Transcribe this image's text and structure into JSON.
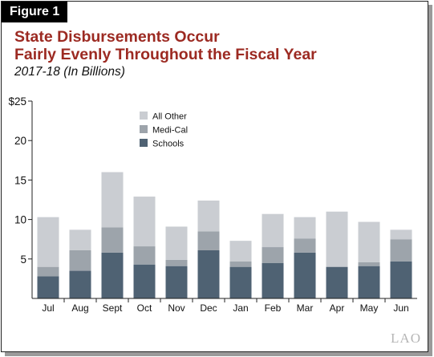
{
  "figure_label": "Figure 1",
  "title_line1": "State Disbursements Occur",
  "title_line2": "Fairly Evenly Throughout the Fiscal Year",
  "subtitle": "2017-18 (In Billions)",
  "logo_text": "LAO",
  "colors": {
    "title": "#9c2a22",
    "schools": "#4f6273",
    "medi_cal": "#9da4ab",
    "all_other": "#cacdd2",
    "axis": "#222222"
  },
  "chart_data": {
    "type": "bar",
    "stacked": true,
    "categories": [
      "Jul",
      "Aug",
      "Sept",
      "Oct",
      "Nov",
      "Dec",
      "Jan",
      "Feb",
      "Mar",
      "Apr",
      "May",
      "Jun"
    ],
    "series": [
      {
        "name": "Schools",
        "color": "#4f6273",
        "values": [
          2.8,
          3.5,
          5.8,
          4.3,
          4.1,
          6.1,
          4.0,
          4.5,
          5.8,
          4.0,
          4.1,
          4.7
        ]
      },
      {
        "name": "Medi-Cal",
        "color": "#9da4ab",
        "values": [
          1.2,
          2.6,
          3.2,
          2.3,
          0.8,
          2.4,
          0.7,
          2.0,
          1.8,
          0.0,
          0.5,
          2.8
        ]
      },
      {
        "name": "All Other",
        "color": "#cacdd2",
        "values": [
          6.3,
          2.6,
          7.0,
          6.3,
          4.2,
          3.9,
          2.6,
          4.2,
          2.7,
          7.0,
          5.1,
          1.2
        ]
      }
    ],
    "ylim": [
      0,
      25
    ],
    "yticks": [
      "5",
      "10",
      "15",
      "20",
      "$25"
    ],
    "ytick_values": [
      5,
      10,
      15,
      20,
      25
    ],
    "legend": [
      "All Other",
      "Medi-Cal",
      "Schools"
    ],
    "legend_placement": "top-center",
    "grid": false
  }
}
